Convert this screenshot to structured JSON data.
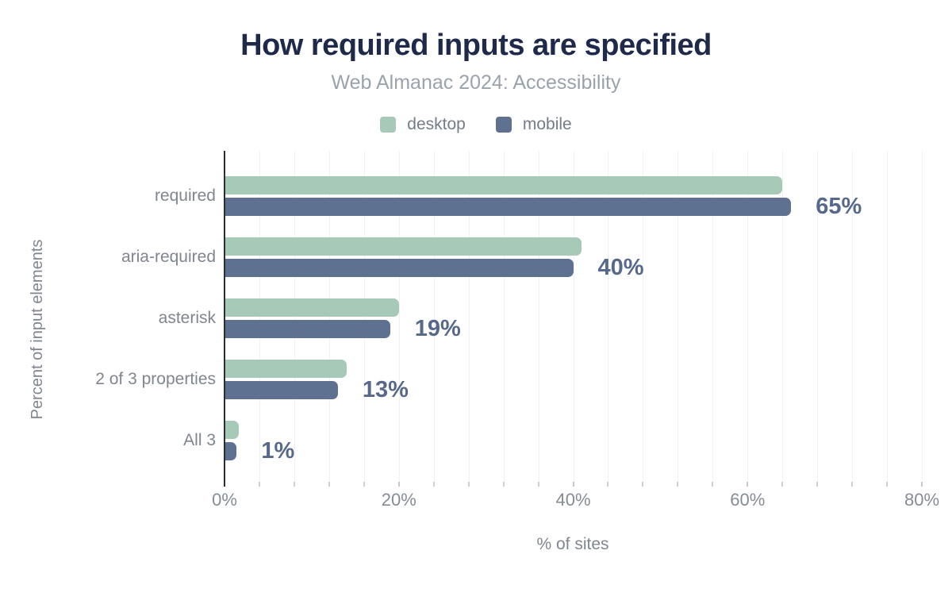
{
  "header": {
    "title": "How required inputs are specified",
    "subtitle": "Web Almanac 2024: Accessibility"
  },
  "legend": [
    {
      "label": "desktop",
      "color": "#a7c9b8"
    },
    {
      "label": "mobile",
      "color": "#5e7190"
    }
  ],
  "colors": {
    "desktop": "#a7c9b8",
    "mobile": "#5e7190",
    "title": "#1f2a4a",
    "subtitle": "#9aa2ac",
    "value_label": "#57698b",
    "axis_text": "#7f868f",
    "axis_line": "#2b2d30",
    "gridline": "#f1f2f4"
  },
  "chart_data": {
    "type": "bar",
    "orientation": "horizontal",
    "title": "How required inputs are specified",
    "subtitle": "Web Almanac 2024: Accessibility",
    "categories": [
      "required",
      "aria-required",
      "asterisk",
      "2 of 3 properties",
      "All 3"
    ],
    "series": [
      {
        "name": "desktop",
        "values": [
          64,
          41,
          20,
          14,
          1.6
        ]
      },
      {
        "name": "mobile",
        "values": [
          65,
          40,
          19,
          13,
          1.4
        ]
      }
    ],
    "value_labels": [
      "65%",
      "40%",
      "19%",
      "13%",
      "1%"
    ],
    "xlabel": "% of sites",
    "ylabel": "Percent of input elements",
    "xlim": [
      0,
      80
    ],
    "xticks": [
      "0%",
      "20%",
      "40%",
      "60%",
      "80%"
    ],
    "xtick_values": [
      0,
      20,
      40,
      60,
      80
    ],
    "minor_grid_step": 4,
    "grid": true,
    "legend_position": "top"
  }
}
